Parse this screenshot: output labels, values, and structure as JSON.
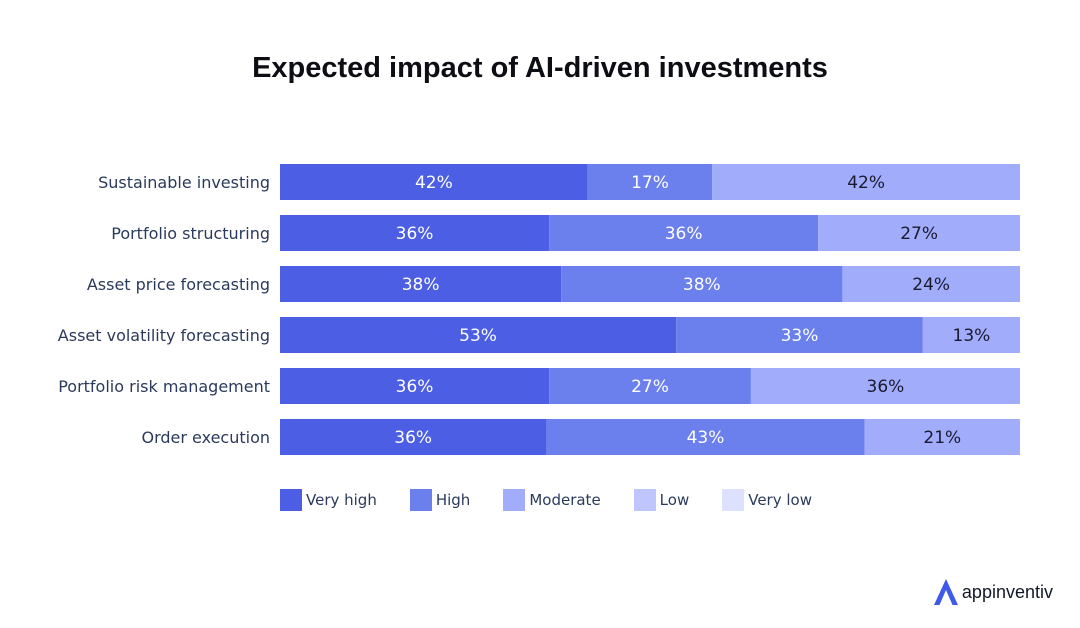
{
  "chart_data": {
    "type": "bar",
    "orientation": "horizontal",
    "stacked": true,
    "title": "Expected impact of AI-driven investments",
    "categories": [
      "Sustainable investing",
      "Portfolio structuring",
      "Asset price forecasting",
      "Asset volatility forecasting",
      "Portfolio risk management",
      "Order execution"
    ],
    "series": [
      {
        "name": "Very high",
        "color": "#4b5ee4",
        "values": [
          42,
          36,
          38,
          53,
          36,
          36
        ]
      },
      {
        "name": "High",
        "color": "#6b7fed",
        "values": [
          17,
          36,
          38,
          33,
          27,
          43
        ]
      },
      {
        "name": "Moderate",
        "color": "#a1acfb",
        "values": [
          42,
          27,
          24,
          13,
          36,
          21
        ]
      },
      {
        "name": "Low",
        "color": "#bec6fd",
        "values": [
          0,
          0,
          0,
          0,
          0,
          0
        ]
      },
      {
        "name": "Very low",
        "color": "#dde1fd",
        "values": [
          0,
          0,
          0,
          0,
          0,
          0
        ]
      }
    ],
    "data_labels": [
      [
        "42%",
        "17%",
        "42%"
      ],
      [
        "36%",
        "36%",
        "27%"
      ],
      [
        "38%",
        "38%",
        "24%"
      ],
      [
        "53%",
        "33%",
        "13%"
      ],
      [
        "36%",
        "27%",
        "36%"
      ],
      [
        "36%",
        "43%",
        "21%"
      ]
    ],
    "xlim": [
      0,
      100
    ],
    "grid": false,
    "legend_position": "bottom-left"
  },
  "brand": {
    "name": "appinventiv",
    "color": "#3f5ae8"
  }
}
